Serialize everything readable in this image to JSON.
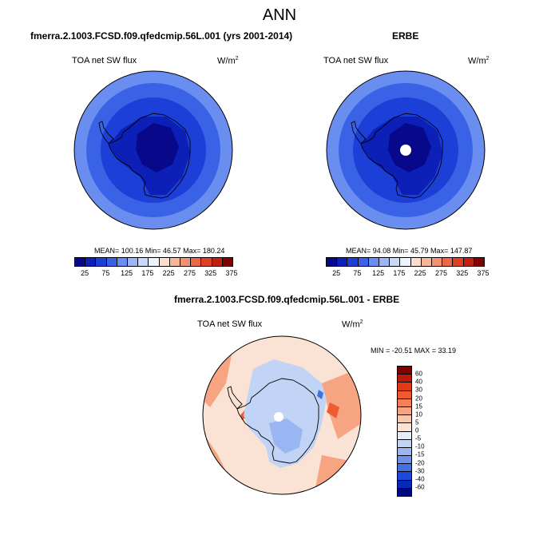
{
  "main_title": "ANN",
  "panels": [
    {
      "title": "fmerra.2.1003.FCSD.f09.qfedcmip.56L.001 (yrs 2001-2014)",
      "variable": "TOA net SW flux",
      "units": "W/m",
      "units_sup": "2",
      "stats": "MEAN= 100.16  Min=  46.57  Max= 180.24"
    },
    {
      "title": "ERBE",
      "variable": "TOA net SW flux",
      "units": "W/m",
      "units_sup": "2",
      "stats": "MEAN=  94.08  Min=  45.79  Max= 147.87"
    },
    {
      "title": "fmerra.2.1003.FCSD.f09.qfedcmip.56L.001 - ERBE",
      "variable": "TOA net SW flux",
      "units": "W/m",
      "units_sup": "2",
      "stats": "MIN = -20.51  MAX =  33.19"
    }
  ],
  "colorbar_abs": {
    "colors": [
      "#08088a",
      "#0c20b8",
      "#1c3fd8",
      "#3a62e6",
      "#6a8ef0",
      "#9ab6f6",
      "#c8daf8",
      "#eef2fc",
      "#fcdccb",
      "#f8b898",
      "#f29270",
      "#ea6a48",
      "#e04020",
      "#c02010",
      "#800000"
    ],
    "labels": [
      "25",
      "75",
      "125",
      "175",
      "225",
      "275",
      "325",
      "375"
    ]
  },
  "colorbar_diff": {
    "colors": [
      "#800000",
      "#c01808",
      "#e03818",
      "#f05a30",
      "#f4805a",
      "#f6a482",
      "#f8c8ae",
      "#fae2d4",
      "#e4ecfa",
      "#c2d4f6",
      "#9ab6f2",
      "#6e92ec",
      "#4470e6",
      "#1e48da",
      "#0828b8",
      "#000880"
    ],
    "labels": [
      "60",
      "40",
      "30",
      "20",
      "15",
      "10",
      "5",
      "0",
      "-5",
      "-10",
      "-15",
      "-20",
      "-30",
      "-40",
      "-60"
    ]
  },
  "map_colors": {
    "ocean_abs": "#6a8ef0",
    "ring_abs": "#3a62e6",
    "inner_abs": "#1c3fd8",
    "core_abs": "#0c20b8",
    "deep_abs": "#08088a",
    "ocean_diff": "#fae2d4",
    "warm_diff": "#f6a482",
    "hot_diff": "#f05a30",
    "cool_diff": "#c2d4f6",
    "cold_diff": "#9ab6f2",
    "deep_cold_diff": "#4470e6",
    "coast": "#000000",
    "missing": "#ffffff"
  }
}
